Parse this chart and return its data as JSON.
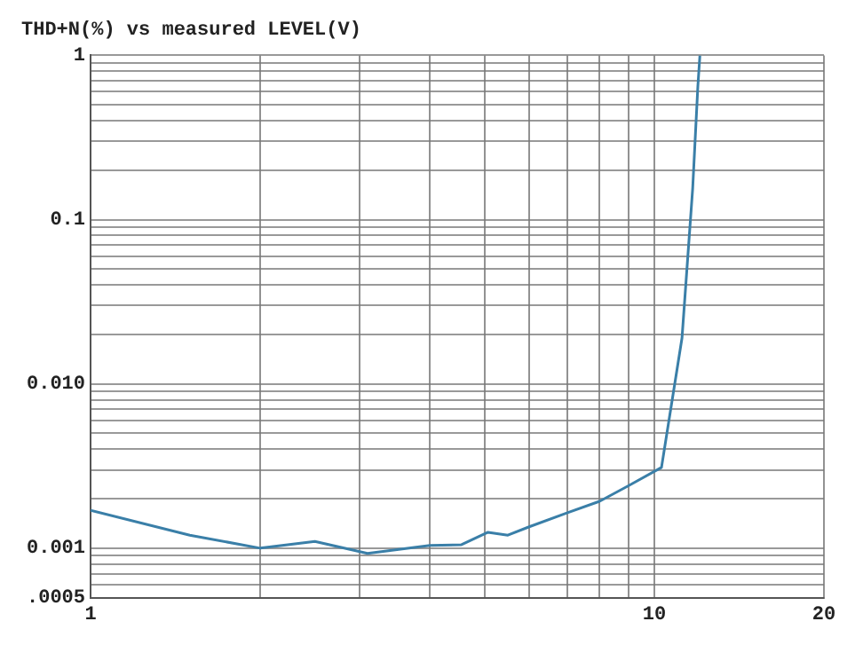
{
  "chart_data": {
    "type": "line",
    "title": "THD+N(%) vs measured LEVEL(V)",
    "log": "xy",
    "grid": true,
    "marker": "none",
    "line_style": "solid",
    "xlim": [
      1,
      20
    ],
    "ylim": [
      0.0005,
      1
    ],
    "xticks": [
      1,
      {
        "value": 2,
        "label": null
      },
      {
        "value": 3,
        "label": null
      },
      {
        "value": 4,
        "label": null
      },
      {
        "value": 5,
        "label": null
      },
      {
        "value": 6,
        "label": null
      },
      {
        "value": 7,
        "label": null
      },
      {
        "value": 8,
        "label": null
      },
      {
        "value": 9,
        "label": null
      },
      10,
      20
    ],
    "yticks": [
      {
        "value": 0.0005,
        "label": ".0005"
      },
      {
        "value": 0.0006,
        "label": null
      },
      {
        "value": 0.0007,
        "label": null
      },
      {
        "value": 0.0008,
        "label": null
      },
      {
        "value": 0.0009,
        "label": null
      },
      0.001,
      {
        "value": 0.002,
        "label": null
      },
      {
        "value": 0.003,
        "label": null
      },
      {
        "value": 0.004,
        "label": null
      },
      {
        "value": 0.005,
        "label": null
      },
      {
        "value": 0.006,
        "label": null
      },
      {
        "value": 0.007,
        "label": null
      },
      {
        "value": 0.008,
        "label": null
      },
      {
        "value": 0.009,
        "label": null
      },
      {
        "value": 0.01,
        "label": "0.010"
      },
      {
        "value": 0.02,
        "label": null
      },
      {
        "value": 0.03,
        "label": null
      },
      {
        "value": 0.04,
        "label": null
      },
      {
        "value": 0.05,
        "label": null
      },
      {
        "value": 0.06,
        "label": null
      },
      {
        "value": 0.07,
        "label": null
      },
      {
        "value": 0.08,
        "label": null
      },
      {
        "value": 0.09,
        "label": null
      },
      0.1,
      {
        "value": 0.2,
        "label": null
      },
      {
        "value": 0.3,
        "label": null
      },
      {
        "value": 0.4,
        "label": null
      },
      {
        "value": 0.5,
        "label": null
      },
      {
        "value": 0.6,
        "label": null
      },
      {
        "value": 0.7,
        "label": null
      },
      {
        "value": 0.8,
        "label": null
      },
      {
        "value": 0.9,
        "label": null
      },
      1
    ],
    "x": [
      1,
      1.5,
      2,
      2.5,
      3.1,
      4,
      4.55,
      5.07,
      5.5,
      6,
      7,
      8,
      9,
      10.3,
      11.2,
      11.7,
      11.95,
      12.05
    ],
    "series": [
      {
        "color": "#3a7fa8",
        "values": [
          0.0017,
          0.0012,
          0.001,
          0.0011,
          0.00093,
          0.00104,
          0.00105,
          0.00125,
          0.0012,
          0.00135,
          0.00164,
          0.00193,
          0.0024,
          0.0031,
          0.019,
          0.155,
          0.65,
          1
        ]
      }
    ]
  }
}
